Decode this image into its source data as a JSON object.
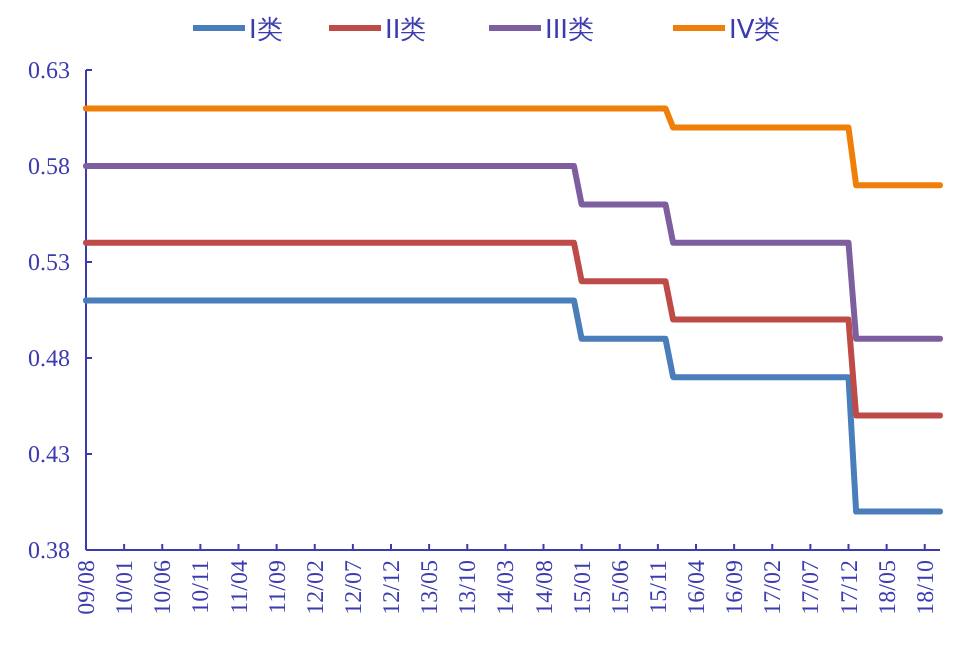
{
  "chart_data": {
    "type": "line",
    "legend": "top",
    "marker": "none",
    "line_style": "solid",
    "grid": false,
    "ylim": [
      0.38,
      0.63
    ],
    "yticks": [
      0.38,
      0.43,
      0.48,
      0.53,
      0.58,
      0.63
    ],
    "xlim": [
      "2009-08",
      "2018-12"
    ],
    "xticks": [
      {
        "value": "2009-08",
        "label": "09/08"
      },
      {
        "value": "2010-01",
        "label": "10/01"
      },
      {
        "value": "2010-06",
        "label": "10/06"
      },
      {
        "value": "2010-11",
        "label": "10/11"
      },
      {
        "value": "2011-04",
        "label": "11/04"
      },
      {
        "value": "2011-09",
        "label": "11/09"
      },
      {
        "value": "2012-02",
        "label": "12/02"
      },
      {
        "value": "2012-07",
        "label": "12/07"
      },
      {
        "value": "2012-12",
        "label": "12/12"
      },
      {
        "value": "2013-05",
        "label": "13/05"
      },
      {
        "value": "2013-10",
        "label": "13/10"
      },
      {
        "value": "2014-03",
        "label": "14/03"
      },
      {
        "value": "2014-08",
        "label": "14/08"
      },
      {
        "value": "2015-01",
        "label": "15/01"
      },
      {
        "value": "2015-06",
        "label": "15/06"
      },
      {
        "value": "2015-11",
        "label": "15/11"
      },
      {
        "value": "2016-04",
        "label": "16/04"
      },
      {
        "value": "2016-09",
        "label": "16/09"
      },
      {
        "value": "2017-02",
        "label": "17/02"
      },
      {
        "value": "2017-07",
        "label": "17/07"
      },
      {
        "value": "2017-12",
        "label": "17/12"
      },
      {
        "value": "2018-05",
        "label": "18/05"
      },
      {
        "value": "2018-10",
        "label": "18/10"
      }
    ],
    "series": [
      {
        "name": "I类",
        "color": "#4a7ebb",
        "x": [
          "2009-08",
          "2014-12",
          "2015-01",
          "2015-12",
          "2016-01",
          "2017-12",
          "2018-01",
          "2018-12"
        ],
        "values": [
          0.51,
          0.51,
          0.49,
          0.49,
          0.47,
          0.47,
          0.4,
          0.4
        ]
      },
      {
        "name": "II类",
        "color": "#be4b48",
        "x": [
          "2009-08",
          "2014-12",
          "2015-01",
          "2015-12",
          "2016-01",
          "2017-12",
          "2018-01",
          "2018-12"
        ],
        "values": [
          0.54,
          0.54,
          0.52,
          0.52,
          0.5,
          0.5,
          0.45,
          0.45
        ]
      },
      {
        "name": "III类",
        "color": "#7d5fa0",
        "x": [
          "2009-08",
          "2014-12",
          "2015-01",
          "2015-12",
          "2016-01",
          "2017-12",
          "2018-01",
          "2018-12"
        ],
        "values": [
          0.58,
          0.58,
          0.56,
          0.56,
          0.54,
          0.54,
          0.49,
          0.49
        ]
      },
      {
        "name": "IV类",
        "color": "#f07f09",
        "x": [
          "2009-08",
          "2015-12",
          "2016-01",
          "2017-12",
          "2018-01",
          "2018-12"
        ],
        "values": [
          0.61,
          0.61,
          0.6,
          0.6,
          0.57,
          0.57
        ]
      }
    ]
  }
}
